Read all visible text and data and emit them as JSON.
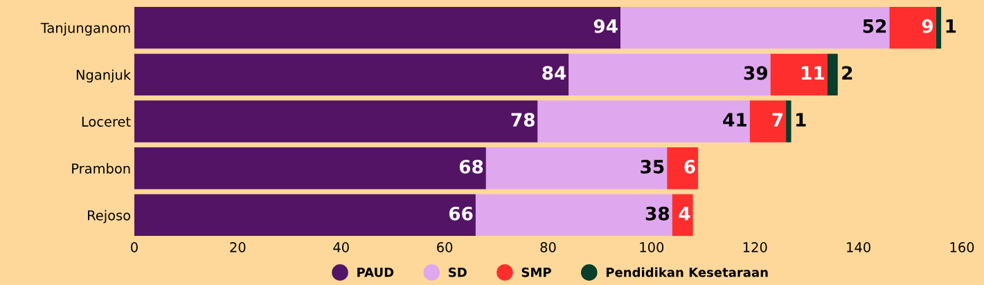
{
  "chart_data": {
    "type": "bar",
    "orientation": "horizontal",
    "stacked": true,
    "categories": [
      "Tanjunganom",
      "Nganjuk",
      "Loceret",
      "Prambon",
      "Rejoso"
    ],
    "series": [
      {
        "name": "PAUD",
        "color": "#541466",
        "values": [
          94,
          84,
          78,
          68,
          66
        ]
      },
      {
        "name": "SD",
        "color": "#dfa8ee",
        "values": [
          52,
          39,
          41,
          35,
          38
        ]
      },
      {
        "name": "SMP",
        "color": "#ff2e2e",
        "values": [
          9,
          11,
          7,
          6,
          4
        ]
      },
      {
        "name": "Pendidikan Kesetaraan",
        "color": "#0a3d2a",
        "values": [
          1,
          2,
          1,
          null,
          null
        ]
      }
    ],
    "xlim": [
      0,
      160
    ],
    "xticks": [
      0,
      20,
      40,
      60,
      80,
      100,
      120,
      140,
      160
    ],
    "data_labels": true,
    "legend": "bottom",
    "grid": false
  }
}
